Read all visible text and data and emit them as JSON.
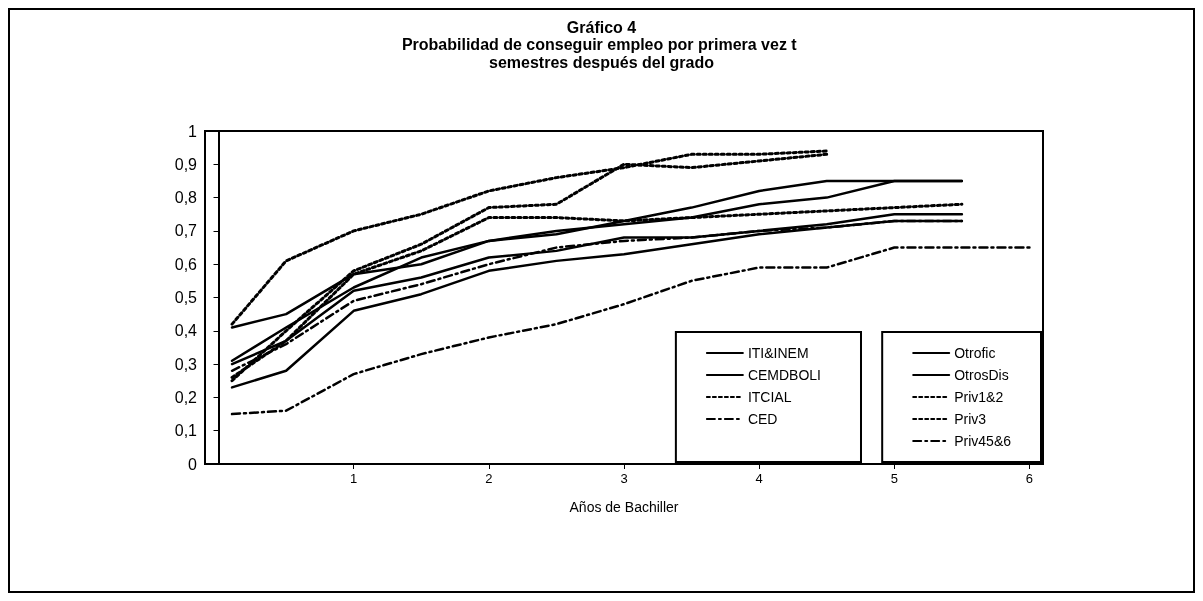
{
  "chart_data": {
    "type": "line",
    "title": "Gráfico 4",
    "subtitle": "Probabilidad de conseguir empleo por primera vez t semestres después del grado",
    "xlabel": "Años de Bachiller",
    "x": [
      0.1,
      0.5,
      1,
      1.5,
      2,
      2.5,
      3,
      3.5,
      4,
      4.5,
      5,
      5.5
    ],
    "xlim": [
      -0.1,
      6.1
    ],
    "xticks": [
      1,
      2,
      3,
      4,
      5,
      6
    ],
    "ylim": [
      0,
      1
    ],
    "yticks": [
      0,
      {
        "value": 0.1,
        "label": "0,1"
      },
      {
        "value": 0.2,
        "label": "0,2"
      },
      {
        "value": 0.3,
        "label": "0,3"
      },
      {
        "value": 0.4,
        "label": "0,4"
      },
      {
        "value": 0.5,
        "label": "0,5"
      },
      {
        "value": 0.6,
        "label": "0,6"
      },
      {
        "value": 0.7,
        "label": "0,7"
      },
      {
        "value": 0.8,
        "label": "0,8"
      },
      {
        "value": 0.9,
        "label": "0,9"
      },
      1
    ],
    "grid": false,
    "legend": "bottom right",
    "marker": "none",
    "series": [
      {
        "name": "ITI&INEM",
        "color": "#000000",
        "line_style": "solid",
        "values": [
          0.41,
          0.45,
          0.57,
          0.6,
          0.67,
          0.7,
          0.72,
          0.74,
          0.78,
          0.8,
          0.85,
          0.85
        ]
      },
      {
        "name": "CEMDBOLI",
        "color": "#000000",
        "line_style": "solid",
        "values": [
          0.23,
          0.28,
          0.46,
          0.51,
          0.58,
          0.61,
          0.63,
          0.66,
          0.69,
          0.71,
          0.73,
          0.73
        ]
      },
      {
        "name": "ITCIAL",
        "color": "#000000",
        "line_style": "dotted",
        "values": [
          0.25,
          0.4,
          0.58,
          0.66,
          0.77,
          0.78,
          0.9,
          0.89,
          0.91,
          0.93,
          null,
          null
        ]
      },
      {
        "name": "CED",
        "color": "#000000",
        "line_style": "dashed",
        "values": [
          0.28,
          0.36,
          0.49,
          0.54,
          0.6,
          0.65,
          0.67,
          0.68,
          0.7,
          0.71,
          0.73,
          0.73
        ]
      },
      {
        "name": "Otrofic",
        "color": "#000000",
        "line_style": "solid",
        "values": [
          0.3,
          0.37,
          0.52,
          0.56,
          0.62,
          0.64,
          0.68,
          0.68,
          0.7,
          0.72,
          0.75,
          0.75
        ]
      },
      {
        "name": "OtrosDis",
        "color": "#000000",
        "line_style": "solid",
        "values": [
          0.31,
          0.41,
          0.53,
          0.62,
          0.67,
          0.69,
          0.73,
          0.77,
          0.82,
          0.85,
          0.85,
          0.85
        ]
      },
      {
        "name": "Priv1&2",
        "color": "#000000",
        "line_style": "dotted",
        "values": [
          0.26,
          0.37,
          0.57,
          0.64,
          0.74,
          0.74,
          0.73,
          0.74,
          0.75,
          0.76,
          0.77,
          0.78
        ]
      },
      {
        "name": "Priv3",
        "color": "#000000",
        "line_style": "dotted",
        "values": [
          0.42,
          0.61,
          0.7,
          0.75,
          0.82,
          0.86,
          0.89,
          0.93,
          0.93,
          0.94,
          null,
          null
        ]
      },
      {
        "name": "Priv45&6",
        "color": "#000000",
        "line_style": "dashed",
        "x": [
          0.1,
          0.5,
          1,
          1.5,
          2,
          2.5,
          3,
          3.5,
          4,
          4.5,
          5,
          5.5,
          6
        ],
        "values": [
          0.15,
          0.16,
          0.27,
          0.33,
          0.38,
          0.42,
          0.48,
          0.55,
          0.59,
          0.59,
          0.65,
          0.65,
          0.65
        ]
      }
    ]
  }
}
